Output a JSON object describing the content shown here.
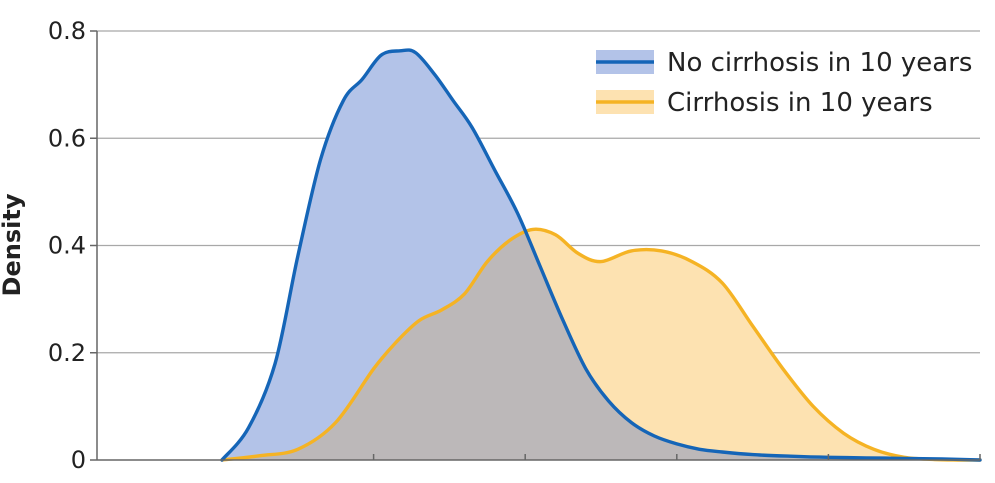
{
  "chart_data": {
    "type": "area",
    "title": "",
    "xlabel": "",
    "ylabel": "Density",
    "ylim": [
      0,
      0.8
    ],
    "yticks": [
      0,
      0.2,
      0.4,
      0.6,
      0.8
    ],
    "ytick_labels": [
      "0",
      "0.2",
      "0.4",
      "0.6",
      "0.8"
    ],
    "xlim": [
      0,
      1
    ],
    "xticks": [
      0.2,
      0.4,
      0.6,
      0.8,
      1.0
    ],
    "grid": "horizontal",
    "legend_position": "top-right",
    "overlap_color": "#bcb8b9",
    "series": [
      {
        "name": "No cirrhosis in 10 years",
        "line_color": "#1565b7",
        "fill_color": "#b3c3e8",
        "x": [
          0.0,
          0.035,
          0.07,
          0.1,
          0.13,
          0.16,
          0.185,
          0.21,
          0.235,
          0.255,
          0.28,
          0.305,
          0.33,
          0.36,
          0.39,
          0.42,
          0.45,
          0.48,
          0.51,
          0.54,
          0.57,
          0.6,
          0.63,
          0.66,
          0.7,
          0.75,
          0.8,
          0.85,
          0.9,
          0.95,
          1.0
        ],
        "y": [
          0.0,
          0.06,
          0.18,
          0.38,
          0.56,
          0.67,
          0.71,
          0.755,
          0.763,
          0.76,
          0.72,
          0.67,
          0.62,
          0.54,
          0.46,
          0.36,
          0.26,
          0.17,
          0.11,
          0.07,
          0.045,
          0.03,
          0.02,
          0.015,
          0.01,
          0.007,
          0.005,
          0.004,
          0.003,
          0.002,
          0.0
        ]
      },
      {
        "name": "Cirrhosis in 10 years",
        "line_color": "#f5b324",
        "fill_color": "#fde2b1",
        "x": [
          0.0,
          0.05,
          0.1,
          0.15,
          0.2,
          0.23,
          0.26,
          0.29,
          0.32,
          0.35,
          0.38,
          0.41,
          0.44,
          0.47,
          0.5,
          0.54,
          0.58,
          0.62,
          0.66,
          0.7,
          0.74,
          0.78,
          0.82,
          0.86,
          0.9,
          0.94,
          0.97,
          1.0
        ],
        "y": [
          0.0,
          0.008,
          0.02,
          0.07,
          0.17,
          0.22,
          0.26,
          0.28,
          0.31,
          0.37,
          0.41,
          0.43,
          0.42,
          0.385,
          0.37,
          0.39,
          0.39,
          0.37,
          0.33,
          0.25,
          0.17,
          0.1,
          0.05,
          0.02,
          0.005,
          0.001,
          0.0,
          0.0
        ]
      }
    ]
  }
}
